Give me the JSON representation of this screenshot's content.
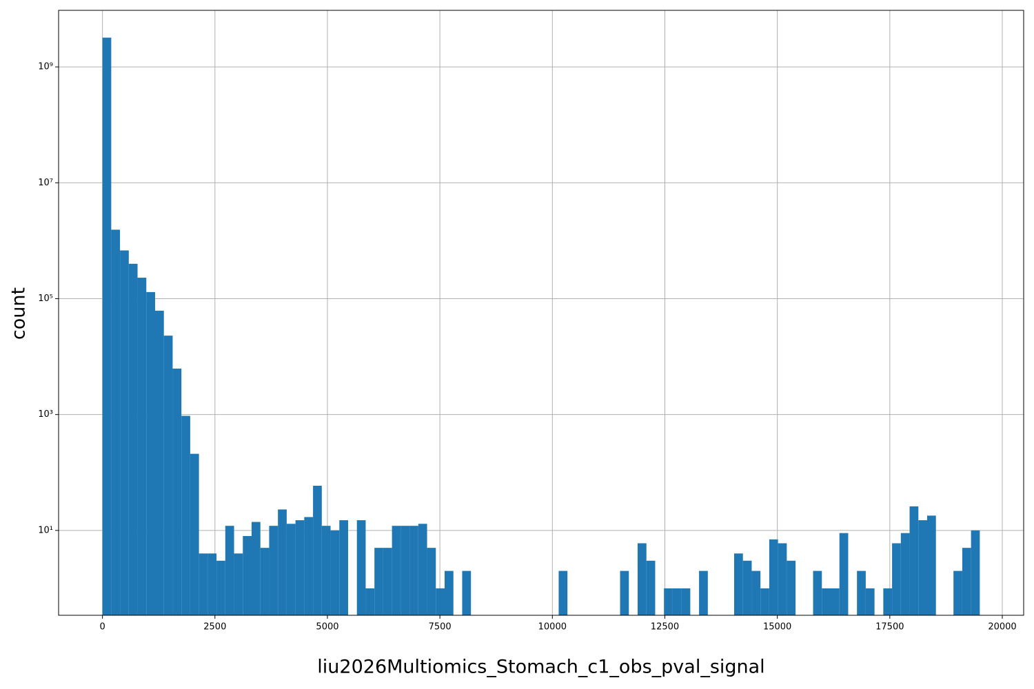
{
  "chart_data": {
    "type": "histogram",
    "xlabel": "liu2026Multiomics_Stomach_c1_obs_pval_signal",
    "ylabel": "count",
    "color": "#1f77b4",
    "log_y": true,
    "grid": true,
    "bins": [
      0,
      195,
      390,
      585,
      780,
      975,
      1170,
      1365,
      1560,
      1755,
      1950,
      2145,
      2340,
      2535,
      2730,
      2925,
      3120,
      3315,
      3510,
      3705,
      3900,
      4095,
      4290,
      4485,
      4680,
      4875,
      5070,
      5265,
      5460,
      5655,
      5850,
      6045,
      6240,
      6435,
      6630,
      6825,
      7020,
      7215,
      7410,
      7605,
      7800,
      7995,
      8190,
      8385,
      8580,
      8775,
      8970,
      9165,
      9360,
      9555,
      9750,
      9945,
      10140,
      10335,
      10530,
      10725,
      10920,
      11115,
      11310,
      11505,
      11700,
      11895,
      12090,
      12285,
      12480,
      12675,
      12870,
      13065,
      13260,
      13455,
      13650,
      13845,
      14040,
      14235,
      14430,
      14625,
      14820,
      15015,
      15210,
      15405,
      15600,
      15795,
      15990,
      16185,
      16380,
      16575,
      16770,
      16965,
      17160,
      17355,
      17550,
      17745,
      17940,
      18135,
      18330,
      18525,
      18720,
      18915,
      19110,
      19305,
      19500
    ],
    "values": [
      3200000000,
      1550000,
      680000,
      400000,
      230000,
      130000,
      62000,
      23000,
      6200,
      950,
      210,
      4,
      4,
      3,
      12,
      4,
      8,
      14,
      5,
      12,
      23,
      13,
      15,
      17,
      59,
      12,
      10,
      15,
      0,
      15,
      1,
      5,
      5,
      12,
      12,
      12,
      13,
      5,
      1,
      2,
      0,
      2,
      0,
      0,
      0,
      0,
      0,
      0,
      0,
      0,
      0,
      0,
      2,
      0,
      0,
      0,
      0,
      0,
      0,
      2,
      0,
      6,
      3,
      0,
      1,
      1,
      1,
      0,
      2,
      0,
      0,
      0,
      4,
      3,
      2,
      1,
      7,
      6,
      3,
      0,
      0,
      2,
      1,
      1,
      9,
      0,
      2,
      1,
      0,
      1,
      6,
      9,
      26,
      15,
      18,
      0,
      0,
      2,
      5,
      10
    ],
    "xlim": [
      -975,
      20475
    ],
    "ylim": [
      0.343,
      9470000000
    ],
    "xticks": [
      0,
      2500,
      5000,
      7500,
      10000,
      12500,
      15000,
      17500,
      20000
    ],
    "yticks": [
      {
        "value": 10,
        "label": "10¹"
      },
      {
        "value": 1000,
        "label": "10³"
      },
      {
        "value": 100000,
        "label": "10⁵"
      },
      {
        "value": 10000000,
        "label": "10⁷"
      },
      {
        "value": 1000000000,
        "label": "10⁹"
      }
    ]
  }
}
